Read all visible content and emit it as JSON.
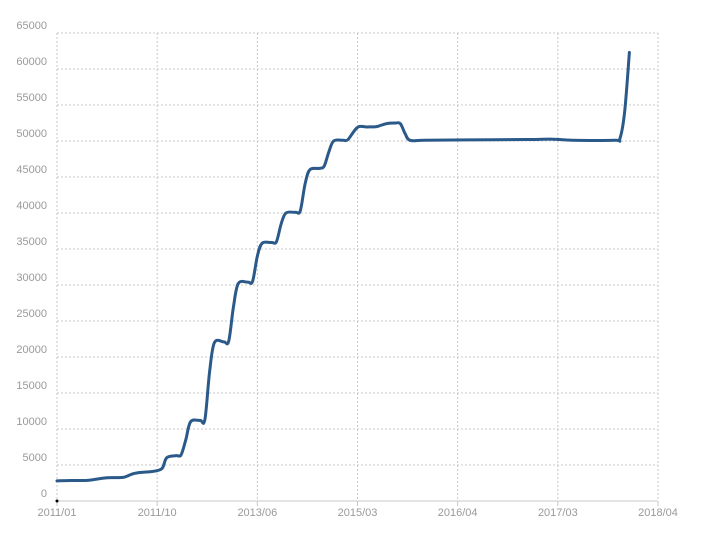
{
  "chart_data": {
    "type": "line",
    "title": "",
    "xlabel": "",
    "ylabel": "",
    "ylim": [
      0,
      65000
    ],
    "grid": true,
    "y_ticks": [
      {
        "value": 0,
        "label": "0"
      },
      {
        "value": 5000,
        "label": "5000"
      },
      {
        "value": 10000,
        "label": "10000"
      },
      {
        "value": 15000,
        "label": "15000"
      },
      {
        "value": 20000,
        "label": "20000"
      },
      {
        "value": 25000,
        "label": "25000"
      },
      {
        "value": 30000,
        "label": "30000"
      },
      {
        "value": 35000,
        "label": "35000"
      },
      {
        "value": 40000,
        "label": "40000"
      },
      {
        "value": 45000,
        "label": "45000"
      },
      {
        "value": 50000,
        "label": "50000"
      },
      {
        "value": 55000,
        "label": "55000"
      },
      {
        "value": 60000,
        "label": "60000"
      },
      {
        "value": 65000,
        "label": "65000"
      }
    ],
    "x_ticks": [
      {
        "value": 0,
        "label": "2011/01"
      },
      {
        "value": 21,
        "label": "2011/10"
      },
      {
        "value": 42,
        "label": "2013/06"
      },
      {
        "value": 63,
        "label": "2015/03"
      },
      {
        "value": 84,
        "label": "2016/04"
      },
      {
        "value": 105,
        "label": "2017/03"
      },
      {
        "value": 126,
        "label": "2018/04"
      }
    ],
    "xlim": [
      0,
      126
    ],
    "series": [
      {
        "color": "#2b5a8a",
        "points": [
          [
            0,
            2800
          ],
          [
            3,
            2850
          ],
          [
            6,
            2850
          ],
          [
            8,
            3000
          ],
          [
            10,
            3200
          ],
          [
            12,
            3250
          ],
          [
            14,
            3300
          ],
          [
            16,
            3800
          ],
          [
            18,
            4000
          ],
          [
            20,
            4100
          ],
          [
            22,
            4500
          ],
          [
            23,
            6000
          ],
          [
            25,
            6300
          ],
          [
            26,
            6400
          ],
          [
            27,
            8500
          ],
          [
            28,
            11000
          ],
          [
            30,
            11200
          ],
          [
            31,
            11300
          ],
          [
            32,
            18000
          ],
          [
            33,
            22000
          ],
          [
            35,
            22100
          ],
          [
            36,
            22200
          ],
          [
            37,
            27000
          ],
          [
            38,
            30200
          ],
          [
            40,
            30400
          ],
          [
            41,
            30500
          ],
          [
            42,
            34000
          ],
          [
            43,
            35800
          ],
          [
            45,
            35900
          ],
          [
            46,
            36000
          ],
          [
            47,
            38500
          ],
          [
            48,
            40000
          ],
          [
            50,
            40100
          ],
          [
            51,
            40300
          ],
          [
            52,
            44000
          ],
          [
            53,
            46000
          ],
          [
            55,
            46200
          ],
          [
            56,
            46500
          ],
          [
            57,
            48500
          ],
          [
            58,
            50000
          ],
          [
            60,
            50100
          ],
          [
            61,
            50200
          ],
          [
            63,
            51900
          ],
          [
            65,
            51950
          ],
          [
            67,
            52000
          ],
          [
            69,
            52400
          ],
          [
            71,
            52500
          ],
          [
            72,
            52400
          ],
          [
            73,
            51000
          ],
          [
            74,
            50100
          ],
          [
            77,
            50100
          ],
          [
            86,
            50150
          ],
          [
            98,
            50200
          ],
          [
            104,
            50250
          ],
          [
            108,
            50100
          ],
          [
            117,
            50100
          ],
          [
            118,
            50300
          ],
          [
            119,
            54000
          ],
          [
            120,
            62300
          ]
        ]
      }
    ]
  }
}
